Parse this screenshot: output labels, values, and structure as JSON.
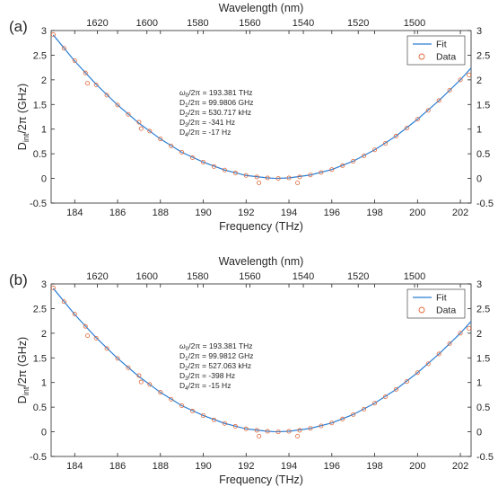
{
  "figure": {
    "panels": [
      {
        "label": "(a)",
        "xlabel": "Frequency (THz)",
        "x2label": "Wavelength (nm)",
        "ylabel_main": "D",
        "ylabel_sub": "int",
        "ylabel_rest": "/2π (GHz)",
        "legend": [
          "Fit",
          "Data"
        ],
        "params": [
          {
            "sym": "ω",
            "sub": "0",
            "rest": "/2π = 193.381 THz"
          },
          {
            "sym": "D",
            "sub": "1",
            "rest": "/2π = 99.9806 GHz"
          },
          {
            "sym": "D",
            "sub": "2",
            "rest": "/2π = 530.717 kHz"
          },
          {
            "sym": "D",
            "sub": "3",
            "rest": "/2π = -341 Hz"
          },
          {
            "sym": "D",
            "sub": "4",
            "rest": "/2π = -17 Hz"
          }
        ]
      },
      {
        "label": "(b)",
        "xlabel": "Frequency (THz)",
        "x2label": "Wavelength (nm)",
        "ylabel_main": "D",
        "ylabel_sub": "int",
        "ylabel_rest": "/2π (GHz)",
        "legend": [
          "Fit",
          "Data"
        ],
        "params": [
          {
            "sym": "ω",
            "sub": "0",
            "rest": "/2π = 193.381 THz"
          },
          {
            "sym": "D",
            "sub": "1",
            "rest": "/2π = 99.9812 GHz"
          },
          {
            "sym": "D",
            "sub": "2",
            "rest": "/2π = 527.063 kHz"
          },
          {
            "sym": "D",
            "sub": "3",
            "rest": "/2π = -398 Hz"
          },
          {
            "sym": "D",
            "sub": "4",
            "rest": "/2π = -15 Hz"
          }
        ]
      }
    ],
    "colors": {
      "fit": "#2d7fd3",
      "data": "#e0683a",
      "axis": "#262626"
    }
  },
  "chart_data": [
    {
      "type": "scatter",
      "xlim": [
        182.9,
        202.5
      ],
      "ylim": [
        -0.5,
        3
      ],
      "x_ticks": [
        184,
        186,
        188,
        190,
        192,
        194,
        196,
        198,
        200,
        202
      ],
      "y_ticks": [
        -0.5,
        0,
        0.5,
        1,
        1.5,
        2,
        2.5,
        3
      ],
      "y_ticks_right": [
        -0.5,
        0,
        0.5,
        1,
        1.5,
        2,
        2.5,
        3
      ],
      "top_axis_ticks": [
        1620,
        1600,
        1580,
        1560,
        1540,
        1520,
        1500
      ],
      "series": [
        {
          "name": "Fit",
          "style": "line",
          "x": [
            183.0,
            184.0,
            185.0,
            186.0,
            187.0,
            188.0,
            189.0,
            190.0,
            191.0,
            192.0,
            193.0,
            193.4,
            194.0,
            195.0,
            196.0,
            197.0,
            198.0,
            199.0,
            200.0,
            201.0,
            202.0,
            202.5
          ],
          "y": [
            2.91,
            2.38,
            1.91,
            1.49,
            1.12,
            0.8,
            0.53,
            0.33,
            0.17,
            0.06,
            0.01,
            0.0,
            0.01,
            0.07,
            0.18,
            0.35,
            0.58,
            0.86,
            1.2,
            1.58,
            2.0,
            2.24
          ]
        },
        {
          "name": "Data",
          "style": "markers",
          "x": [
            183.0,
            183.5,
            184.0,
            184.5,
            184.6,
            185.0,
            185.5,
            186.0,
            186.5,
            187.0,
            187.1,
            187.5,
            188.0,
            188.5,
            189.0,
            189.5,
            190.0,
            190.5,
            191.0,
            191.5,
            192.0,
            192.5,
            192.6,
            193.0,
            193.5,
            194.0,
            194.4,
            194.5,
            195.0,
            195.5,
            196.0,
            196.5,
            197.0,
            197.5,
            198.0,
            198.5,
            199.0,
            199.5,
            200.0,
            200.5,
            201.0,
            201.5,
            202.0,
            202.4
          ],
          "y": [
            2.92,
            2.64,
            2.39,
            2.14,
            1.93,
            1.9,
            1.69,
            1.49,
            1.3,
            1.14,
            1.01,
            0.96,
            0.8,
            0.66,
            0.53,
            0.42,
            0.33,
            0.24,
            0.17,
            0.11,
            0.06,
            0.03,
            -0.09,
            0.01,
            0.0,
            0.01,
            -0.09,
            0.03,
            0.07,
            0.12,
            0.18,
            0.26,
            0.35,
            0.46,
            0.58,
            0.71,
            0.86,
            1.02,
            1.2,
            1.38,
            1.58,
            1.79,
            2.0,
            2.1
          ]
        }
      ]
    },
    {
      "type": "scatter",
      "xlim": [
        182.9,
        202.5
      ],
      "ylim": [
        -0.5,
        3
      ],
      "x_ticks": [
        184,
        186,
        188,
        190,
        192,
        194,
        196,
        198,
        200,
        202
      ],
      "y_ticks": [
        -0.5,
        0,
        0.5,
        1,
        1.5,
        2,
        2.5,
        3
      ],
      "y_ticks_right": [
        -0.5,
        0,
        0.5,
        1,
        1.5,
        2,
        2.5,
        3
      ],
      "top_axis_ticks": [
        1620,
        1600,
        1580,
        1560,
        1540,
        1520,
        1500
      ],
      "series": [
        {
          "name": "Fit",
          "style": "line",
          "x": [
            183.0,
            184.0,
            185.0,
            186.0,
            187.0,
            188.0,
            189.0,
            190.0,
            191.0,
            192.0,
            193.0,
            193.4,
            194.0,
            195.0,
            196.0,
            197.0,
            198.0,
            199.0,
            200.0,
            201.0,
            202.0,
            202.5
          ],
          "y": [
            2.91,
            2.38,
            1.91,
            1.49,
            1.12,
            0.8,
            0.53,
            0.33,
            0.17,
            0.06,
            0.01,
            0.0,
            0.01,
            0.07,
            0.18,
            0.35,
            0.58,
            0.86,
            1.2,
            1.58,
            2.0,
            2.24
          ]
        },
        {
          "name": "Data",
          "style": "markers",
          "x": [
            183.0,
            183.5,
            184.0,
            184.5,
            184.6,
            185.0,
            185.5,
            186.0,
            186.5,
            187.0,
            187.1,
            187.5,
            188.0,
            188.5,
            189.0,
            189.5,
            190.0,
            190.5,
            191.0,
            191.5,
            192.0,
            192.5,
            192.6,
            193.0,
            193.5,
            194.0,
            194.4,
            194.5,
            195.0,
            195.5,
            196.0,
            196.5,
            197.0,
            197.5,
            198.0,
            198.5,
            199.0,
            199.5,
            200.0,
            200.5,
            201.0,
            201.5,
            202.0,
            202.4
          ],
          "y": [
            2.92,
            2.64,
            2.39,
            2.14,
            1.95,
            1.9,
            1.69,
            1.49,
            1.3,
            1.14,
            1.01,
            0.96,
            0.8,
            0.66,
            0.53,
            0.42,
            0.33,
            0.24,
            0.17,
            0.11,
            0.06,
            0.03,
            -0.09,
            0.01,
            0.0,
            0.01,
            -0.09,
            0.03,
            0.07,
            0.12,
            0.18,
            0.26,
            0.35,
            0.46,
            0.58,
            0.71,
            0.86,
            1.02,
            1.2,
            1.38,
            1.58,
            1.79,
            2.0,
            2.1
          ]
        }
      ]
    }
  ]
}
